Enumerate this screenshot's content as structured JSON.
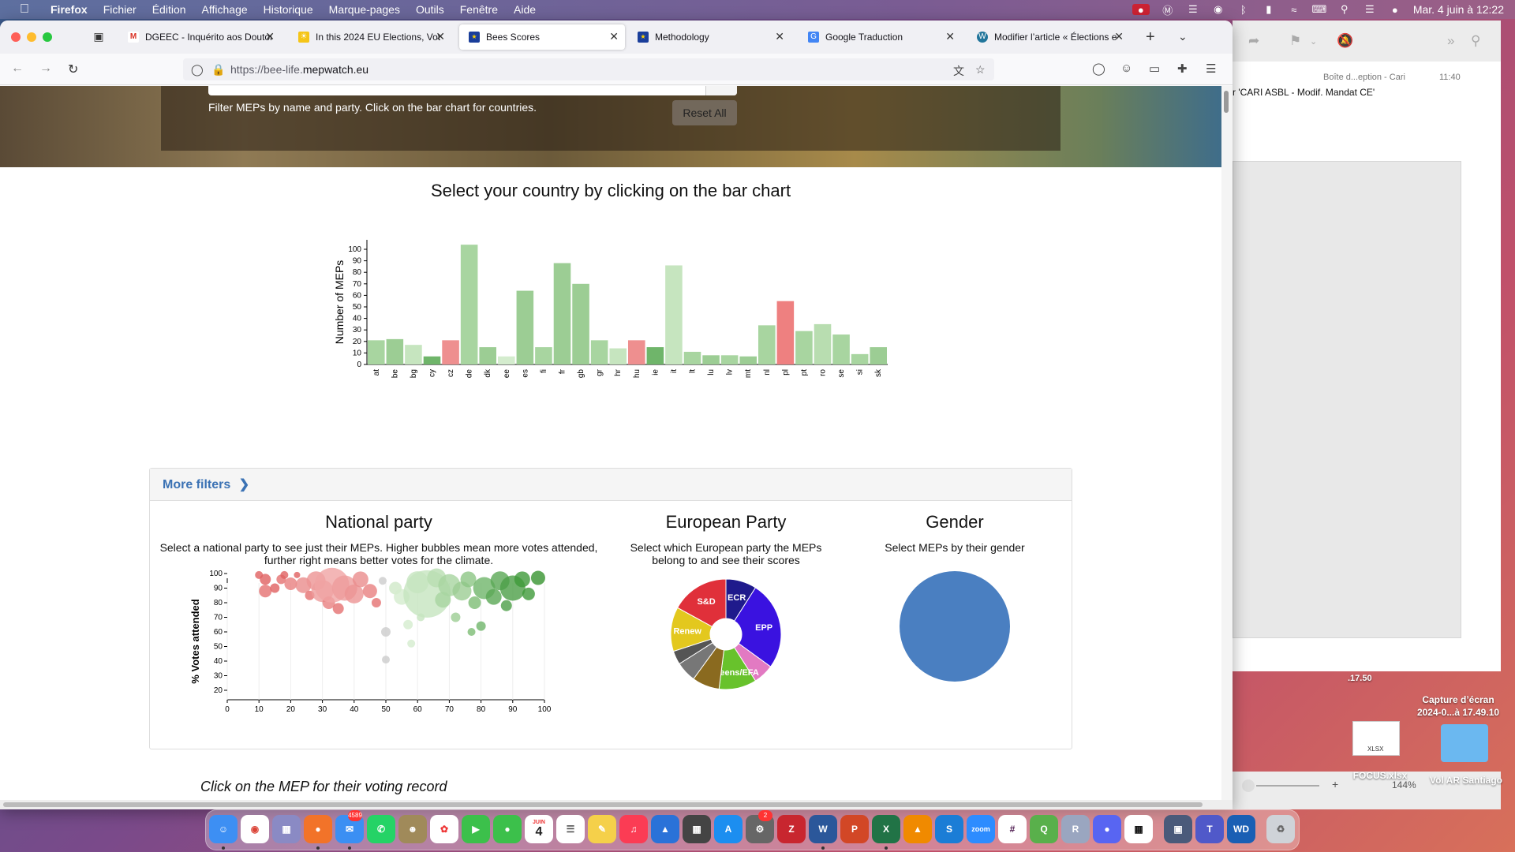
{
  "menubar": {
    "app_name": "Firefox",
    "items": [
      "Fichier",
      "Édition",
      "Affichage",
      "Historique",
      "Marque-pages",
      "Outils",
      "Fenêtre",
      "Aide"
    ],
    "datetime": "Mar. 4 juin à  12:22"
  },
  "browser": {
    "tabs": [
      {
        "label": "DGEEC - Inquérito aos Doutor",
        "icon": "gmail-icon",
        "active": false
      },
      {
        "label": "In this 2024 EU Elections, Vot",
        "icon": "sun-icon",
        "active": false
      },
      {
        "label": "Bees Scores",
        "icon": "eu-flag-icon",
        "active": true
      },
      {
        "label": "Methodology",
        "icon": "eu-flag-icon",
        "active": false
      },
      {
        "label": "Google Traduction",
        "icon": "translate-icon",
        "active": false
      },
      {
        "label": "Modifier l’article « Élections e",
        "icon": "wordpress-icon",
        "active": false
      }
    ],
    "url_scheme": "https://bee-life.",
    "url_host": "mepwatch.eu"
  },
  "page": {
    "filter_help": "Filter MEPs by name and party. Click on the bar chart for countries.",
    "reset_label": "Reset All",
    "country_title": "Select your country by clicking on the bar chart",
    "more_filters_label": "More filters",
    "national": {
      "title": "National party",
      "desc_line1": "Select a national party to see just their MEPs. Higher bubbles mean more votes attended,",
      "desc_line2": "further right means better votes for the climate."
    },
    "european": {
      "title": "European Party",
      "desc_line1": "Select which European party the MEPs",
      "desc_line2": "belong to and see their scores"
    },
    "gender": {
      "title": "Gender",
      "desc": "Select MEPs by their gender",
      "color": "#4a7fc1"
    },
    "click_mep": "Click on the MEP for their voting record"
  },
  "chart_data": [
    {
      "type": "bar",
      "ylabel": "Number of MEPs",
      "ylim": [
        0,
        100
      ],
      "yticks": [
        0,
        10,
        20,
        30,
        40,
        50,
        60,
        70,
        80,
        90,
        100
      ],
      "categories": [
        "at",
        "be",
        "bg",
        "cy",
        "cz",
        "de",
        "dk",
        "ee",
        "es",
        "fi",
        "fr",
        "gb",
        "gr",
        "hr",
        "hu",
        "ie",
        "it",
        "lt",
        "lu",
        "lv",
        "mt",
        "nl",
        "pl",
        "pt",
        "ro",
        "se",
        "si",
        "sk"
      ],
      "values": [
        21,
        22,
        17,
        7,
        21,
        104,
        15,
        7,
        64,
        15,
        88,
        70,
        21,
        14,
        21,
        15,
        86,
        11,
        8,
        8,
        7,
        34,
        55,
        29,
        35,
        26,
        9,
        15
      ],
      "colors": [
        "#a8d5a0",
        "#9ccd94",
        "#c6e5bf",
        "#6fb56a",
        "#ee8f8f",
        "#a8d5a0",
        "#9ccd94",
        "#d4ecce",
        "#9ccd94",
        "#a8d5a0",
        "#9ccd94",
        "#9ccd94",
        "#a8d5a0",
        "#c6e5bf",
        "#ee8f8f",
        "#6fb56a",
        "#c6e5bf",
        "#a8d5a0",
        "#9ccd94",
        "#a8d5a0",
        "#9ccd94",
        "#a8d5a0",
        "#ee8080",
        "#a8d5a0",
        "#b8ddb0",
        "#a8d5a0",
        "#a8d5a0",
        "#9ccd94"
      ]
    },
    {
      "type": "scatter",
      "ylabel": "% Votes attended",
      "xlim": [
        0,
        100
      ],
      "ylim": [
        20,
        100
      ],
      "xticks": [
        0,
        10,
        20,
        30,
        40,
        50,
        60,
        70,
        80,
        90,
        100
      ],
      "yticks": [
        20,
        30,
        40,
        50,
        60,
        70,
        80,
        90,
        100
      ],
      "points": [
        {
          "x": 10,
          "y": 99,
          "r": 5,
          "color": "#e06060"
        },
        {
          "x": 12,
          "y": 96,
          "r": 7,
          "color": "#e06060"
        },
        {
          "x": 12,
          "y": 88,
          "r": 8,
          "color": "#e57070"
        },
        {
          "x": 15,
          "y": 90,
          "r": 6,
          "color": "#e06060"
        },
        {
          "x": 17,
          "y": 96,
          "r": 6,
          "color": "#e57070"
        },
        {
          "x": 18,
          "y": 99,
          "r": 5,
          "color": "#e06060"
        },
        {
          "x": 20,
          "y": 93,
          "r": 8,
          "color": "#e88080"
        },
        {
          "x": 22,
          "y": 99,
          "r": 4,
          "color": "#e06060"
        },
        {
          "x": 24,
          "y": 92,
          "r": 10,
          "color": "#ea8c8c"
        },
        {
          "x": 26,
          "y": 85,
          "r": 6,
          "color": "#e57070"
        },
        {
          "x": 28,
          "y": 95,
          "r": 12,
          "color": "#ec9494"
        },
        {
          "x": 30,
          "y": 88,
          "r": 14,
          "color": "#ee9c9c"
        },
        {
          "x": 32,
          "y": 80,
          "r": 8,
          "color": "#e88080"
        },
        {
          "x": 33,
          "y": 92,
          "r": 22,
          "color": "#f0a4a4"
        },
        {
          "x": 35,
          "y": 76,
          "r": 7,
          "color": "#e57070"
        },
        {
          "x": 37,
          "y": 90,
          "r": 16,
          "color": "#ee9c9c"
        },
        {
          "x": 40,
          "y": 86,
          "r": 12,
          "color": "#ec9494"
        },
        {
          "x": 42,
          "y": 96,
          "r": 10,
          "color": "#ea8c8c"
        },
        {
          "x": 45,
          "y": 88,
          "r": 9,
          "color": "#e88080"
        },
        {
          "x": 47,
          "y": 80,
          "r": 6,
          "color": "#e57070"
        },
        {
          "x": 49,
          "y": 95,
          "r": 5,
          "color": "#cccccc"
        },
        {
          "x": 50,
          "y": 60,
          "r": 6,
          "color": "#cccccc"
        },
        {
          "x": 50,
          "y": 41,
          "r": 5,
          "color": "#cccccc"
        },
        {
          "x": 53,
          "y": 90,
          "r": 8,
          "color": "#cfe8c8"
        },
        {
          "x": 55,
          "y": 84,
          "r": 10,
          "color": "#d4ecce"
        },
        {
          "x": 57,
          "y": 65,
          "r": 6,
          "color": "#d4ecce"
        },
        {
          "x": 58,
          "y": 52,
          "r": 5,
          "color": "#d4ecce"
        },
        {
          "x": 60,
          "y": 94,
          "r": 14,
          "color": "#c6e5bf"
        },
        {
          "x": 61,
          "y": 70,
          "r": 5,
          "color": "#c6e5bf"
        },
        {
          "x": 63,
          "y": 86,
          "r": 30,
          "color": "#c6e5bf"
        },
        {
          "x": 66,
          "y": 97,
          "r": 12,
          "color": "#b8ddb0"
        },
        {
          "x": 68,
          "y": 82,
          "r": 10,
          "color": "#a8d5a0"
        },
        {
          "x": 70,
          "y": 92,
          "r": 14,
          "color": "#a8d5a0"
        },
        {
          "x": 72,
          "y": 70,
          "r": 6,
          "color": "#9ccd94"
        },
        {
          "x": 74,
          "y": 88,
          "r": 12,
          "color": "#9ccd94"
        },
        {
          "x": 76,
          "y": 96,
          "r": 10,
          "color": "#8cc584"
        },
        {
          "x": 77,
          "y": 60,
          "r": 5,
          "color": "#7dbd74"
        },
        {
          "x": 78,
          "y": 80,
          "r": 8,
          "color": "#7dbd74"
        },
        {
          "x": 80,
          "y": 64,
          "r": 6,
          "color": "#6fb56a"
        },
        {
          "x": 81,
          "y": 90,
          "r": 14,
          "color": "#6fb56a"
        },
        {
          "x": 84,
          "y": 84,
          "r": 10,
          "color": "#5aa855"
        },
        {
          "x": 86,
          "y": 95,
          "r": 12,
          "color": "#5aa855"
        },
        {
          "x": 88,
          "y": 78,
          "r": 7,
          "color": "#4c9f47"
        },
        {
          "x": 90,
          "y": 90,
          "r": 16,
          "color": "#4c9f47"
        },
        {
          "x": 93,
          "y": 96,
          "r": 10,
          "color": "#3f9a3a"
        },
        {
          "x": 95,
          "y": 86,
          "r": 8,
          "color": "#3f9a3a"
        },
        {
          "x": 98,
          "y": 97,
          "r": 9,
          "color": "#37932f"
        }
      ]
    },
    {
      "type": "pie",
      "slices": [
        {
          "label": "ECR",
          "value": 9,
          "color": "#1f1a8c"
        },
        {
          "label": "EPP",
          "value": 26,
          "color": "#3a12e0"
        },
        {
          "label": "",
          "value": 6,
          "color": "#e27ac2"
        },
        {
          "label": "Greens/EFA",
          "value": 11,
          "color": "#68c22c"
        },
        {
          "label": "",
          "value": 8,
          "color": "#8a6a1f"
        },
        {
          "label": "",
          "value": 6,
          "color": "#777777"
        },
        {
          "label": "",
          "value": 4,
          "color": "#555555"
        },
        {
          "label": "Renew",
          "value": 13,
          "color": "#e3c81e"
        },
        {
          "label": "S&D",
          "value": 17,
          "color": "#e0303a"
        }
      ]
    }
  ],
  "mail": {
    "folder": "Boîte d...eption - Cari",
    "time": "11:40",
    "subject": "r 'CARI ASBL - Modif. Mandat CE'",
    "zoom": "144%"
  },
  "desktop": {
    "time_fragment": ".17.50",
    "file1_label": "FOCUS.xlsx",
    "file1_type": "XLSX",
    "file2_label_line1": "Capture d’écran",
    "file2_label_line2": "2024-0...à 17.49.10",
    "folder_label": "Vol AR Santiago"
  },
  "dock": {
    "mail_badge": "4589",
    "calendar_day": "4",
    "calendar_month": "JUIN",
    "prefs_badge": "2"
  }
}
